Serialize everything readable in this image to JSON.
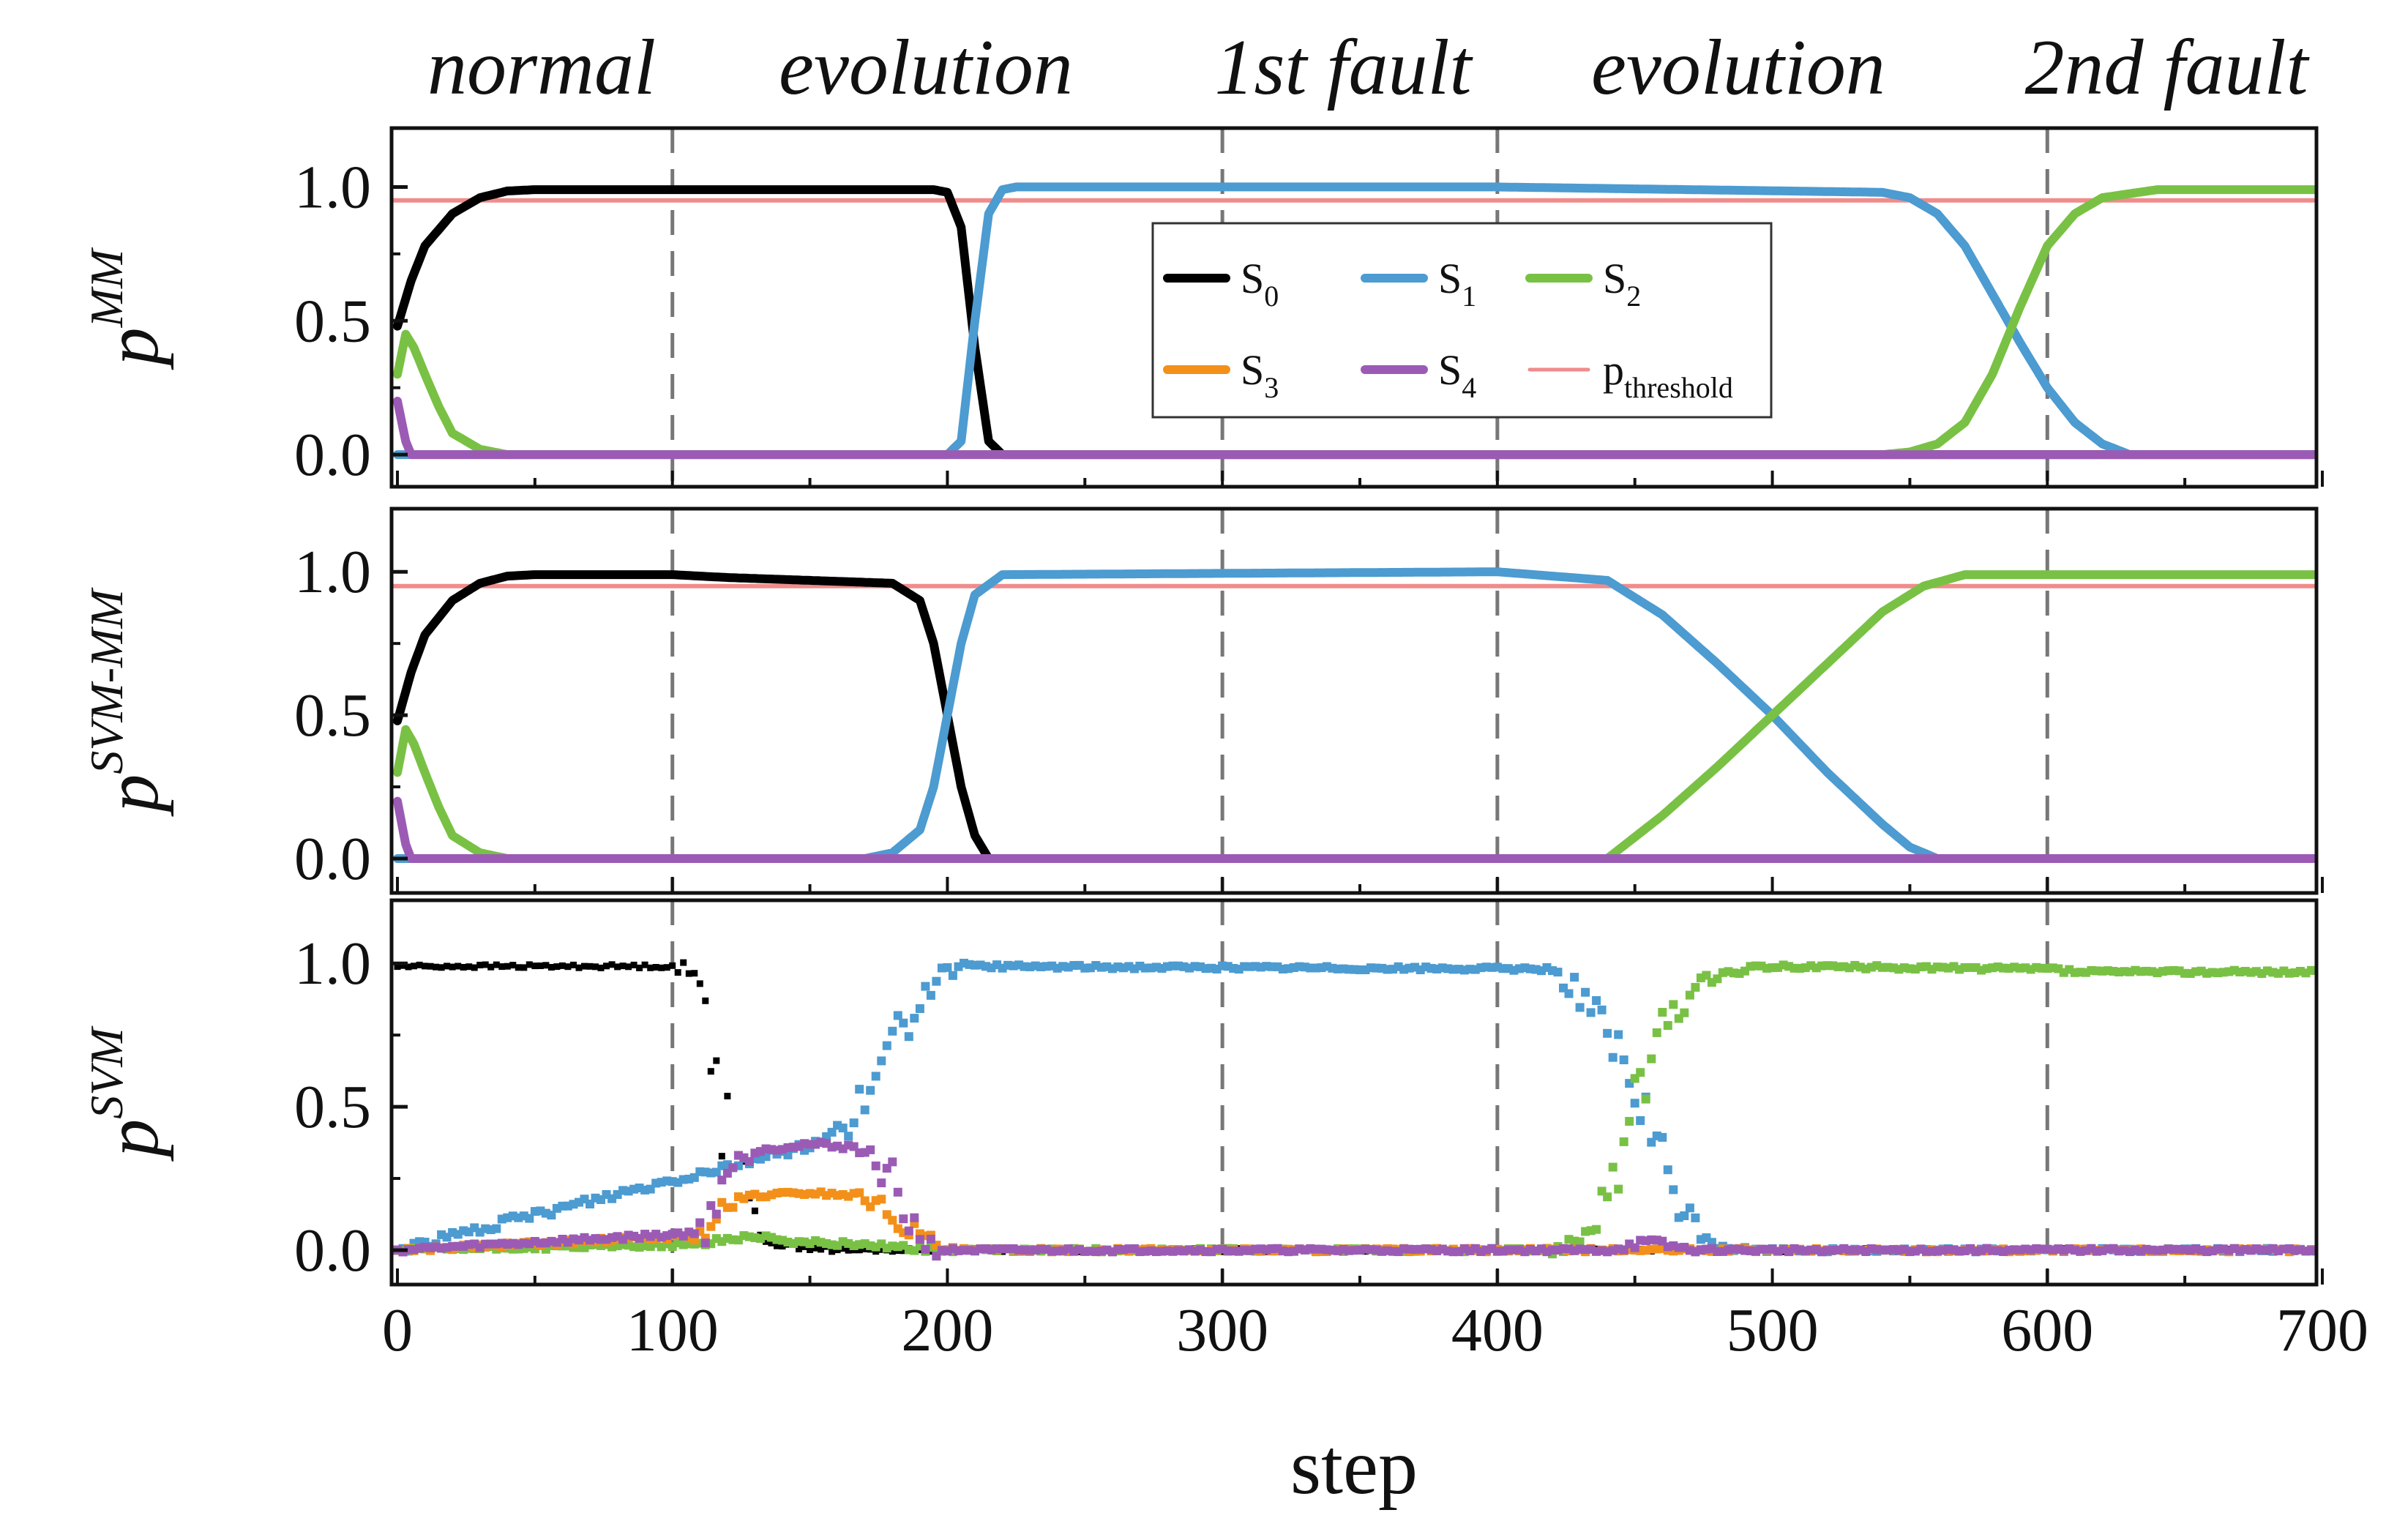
{
  "chart_data": {
    "type": "line",
    "x_label": "step",
    "x_range": [
      0,
      700
    ],
    "x_ticks": [
      "0",
      "100",
      "200",
      "300",
      "400",
      "500",
      "600",
      "700"
    ],
    "y_ticks": [
      "0.0",
      "0.5",
      "1.0"
    ],
    "y_range": [
      -0.12,
      1.22
    ],
    "phase_labels": [
      "normal",
      "evolution",
      "1st fault",
      "evolution",
      "2nd fault"
    ],
    "phase_boundaries": [
      100,
      300,
      400,
      600
    ],
    "threshold": 0.95,
    "colors": {
      "S0": "#000000",
      "S1": "#4c9bd1",
      "S2": "#79c144",
      "S3": "#f39019",
      "S4": "#9b5bb5",
      "threshold": "#f08c8c",
      "dash": "#777777"
    },
    "legend": {
      "position": "top-center",
      "entries": [
        {
          "key": "S0",
          "label": "S",
          "sub": "0"
        },
        {
          "key": "S1",
          "label": "S",
          "sub": "1"
        },
        {
          "key": "S2",
          "label": "S",
          "sub": "2"
        },
        {
          "key": "S3",
          "label": "S",
          "sub": "3"
        },
        {
          "key": "S4",
          "label": "S",
          "sub": "4"
        },
        {
          "key": "threshold",
          "label": "p",
          "sub": "threshold"
        }
      ]
    },
    "panels": [
      {
        "name": "MM",
        "ylabel": "p",
        "ylabel_sup": "MM",
        "style": "line",
        "series": [
          {
            "name": "S0",
            "x": [
              0,
              5,
              10,
              20,
              30,
              40,
              50,
              100,
              150,
              195,
              200,
              205,
              210,
              215,
              220,
              700
            ],
            "y": [
              0.48,
              0.65,
              0.78,
              0.9,
              0.96,
              0.985,
              0.99,
              0.99,
              0.99,
              0.99,
              0.98,
              0.85,
              0.4,
              0.05,
              0.0,
              0.0
            ]
          },
          {
            "name": "S1",
            "x": [
              0,
              200,
              205,
              210,
              215,
              220,
              225,
              400,
              540,
              550,
              560,
              570,
              580,
              590,
              600,
              610,
              620,
              630,
              700
            ],
            "y": [
              0.0,
              0.0,
              0.05,
              0.5,
              0.9,
              0.99,
              1.0,
              1.0,
              0.98,
              0.96,
              0.9,
              0.78,
              0.6,
              0.42,
              0.25,
              0.12,
              0.04,
              0.0,
              0.0
            ]
          },
          {
            "name": "S2",
            "x": [
              0,
              3,
              6,
              10,
              15,
              20,
              30,
              40,
              540,
              550,
              560,
              570,
              580,
              590,
              600,
              610,
              620,
              640,
              700
            ],
            "y": [
              0.3,
              0.45,
              0.4,
              0.3,
              0.18,
              0.08,
              0.02,
              0.0,
              0.0,
              0.01,
              0.04,
              0.12,
              0.3,
              0.55,
              0.78,
              0.9,
              0.96,
              0.99,
              0.99
            ]
          },
          {
            "name": "S4",
            "x": [
              0,
              3,
              5,
              700
            ],
            "y": [
              0.2,
              0.05,
              0.0,
              0.0
            ]
          }
        ]
      },
      {
        "name": "SVM-MM",
        "ylabel": "p",
        "ylabel_sup": "SVM-MM",
        "style": "line",
        "series": [
          {
            "name": "S0",
            "x": [
              0,
              5,
              10,
              20,
              30,
              40,
              50,
              100,
              120,
              150,
              180,
              190,
              195,
              200,
              205,
              210,
              215,
              700
            ],
            "y": [
              0.48,
              0.65,
              0.78,
              0.9,
              0.96,
              0.985,
              0.99,
              0.99,
              0.98,
              0.97,
              0.96,
              0.9,
              0.75,
              0.5,
              0.25,
              0.08,
              0.0,
              0.0
            ]
          },
          {
            "name": "S1",
            "x": [
              0,
              170,
              180,
              190,
              195,
              200,
              205,
              210,
              220,
              400,
              440,
              460,
              480,
              500,
              520,
              540,
              550,
              560,
              700
            ],
            "y": [
              0.0,
              0.0,
              0.02,
              0.1,
              0.25,
              0.5,
              0.75,
              0.92,
              0.99,
              1.0,
              0.97,
              0.85,
              0.68,
              0.5,
              0.3,
              0.12,
              0.04,
              0.0,
              0.0
            ]
          },
          {
            "name": "S2",
            "x": [
              0,
              3,
              6,
              10,
              15,
              20,
              30,
              40,
              440,
              460,
              480,
              500,
              520,
              540,
              555,
              570,
              700
            ],
            "y": [
              0.3,
              0.45,
              0.4,
              0.3,
              0.18,
              0.08,
              0.02,
              0.0,
              0.0,
              0.15,
              0.32,
              0.5,
              0.68,
              0.86,
              0.95,
              0.99,
              0.99
            ]
          },
          {
            "name": "S4",
            "x": [
              0,
              3,
              5,
              700
            ],
            "y": [
              0.2,
              0.05,
              0.0,
              0.0
            ]
          }
        ]
      },
      {
        "name": "SVM",
        "ylabel": "p",
        "ylabel_sup": "SVM",
        "style": "scatter",
        "series": [
          {
            "name": "S0",
            "x": [
              0,
              50,
              100,
              105,
              110,
              115,
              120,
              125,
              130,
              140,
              160,
              700
            ],
            "y": [
              0.99,
              0.99,
              0.99,
              0.97,
              0.92,
              0.75,
              0.45,
              0.2,
              0.08,
              0.02,
              0.0,
              0.0
            ]
          },
          {
            "name": "S1",
            "x": [
              0,
              155,
              165,
              175,
              185,
              195,
              205,
              420,
              430,
              440,
              450,
              460,
              470,
              480,
              490,
              700
            ],
            "y": [
              0.0,
              0.38,
              0.45,
              0.6,
              0.8,
              0.95,
              0.99,
              0.98,
              0.9,
              0.75,
              0.55,
              0.3,
              0.1,
              0.02,
              0.0,
              0.0
            ]
          },
          {
            "name": "S2",
            "x": [
              0,
              110,
              120,
              130,
              140,
              170,
              185,
              195,
              420,
              430,
              440,
              450,
              460,
              470,
              480,
              500,
              600,
              610,
              700
            ],
            "y": [
              0.0,
              0.02,
              0.04,
              0.05,
              0.03,
              0.02,
              0.01,
              0.0,
              0.0,
              0.05,
              0.2,
              0.5,
              0.75,
              0.9,
              0.96,
              0.99,
              0.98,
              0.97,
              0.97
            ]
          },
          {
            "name": "S3",
            "x": [
              0,
              110,
              120,
              130,
              150,
              170,
              180,
              190,
              200,
              700
            ],
            "y": [
              0.0,
              0.05,
              0.15,
              0.19,
              0.2,
              0.19,
              0.12,
              0.05,
              0.0,
              0.0
            ]
          },
          {
            "name": "S4",
            "x": [
              0,
              110,
              120,
              130,
              150,
              165,
              175,
              185,
              195,
              440,
              455,
              470,
              700
            ],
            "y": [
              0.0,
              0.06,
              0.28,
              0.35,
              0.37,
              0.36,
              0.32,
              0.12,
              0.0,
              0.0,
              0.03,
              0.0,
              0.0
            ]
          }
        ]
      }
    ]
  }
}
